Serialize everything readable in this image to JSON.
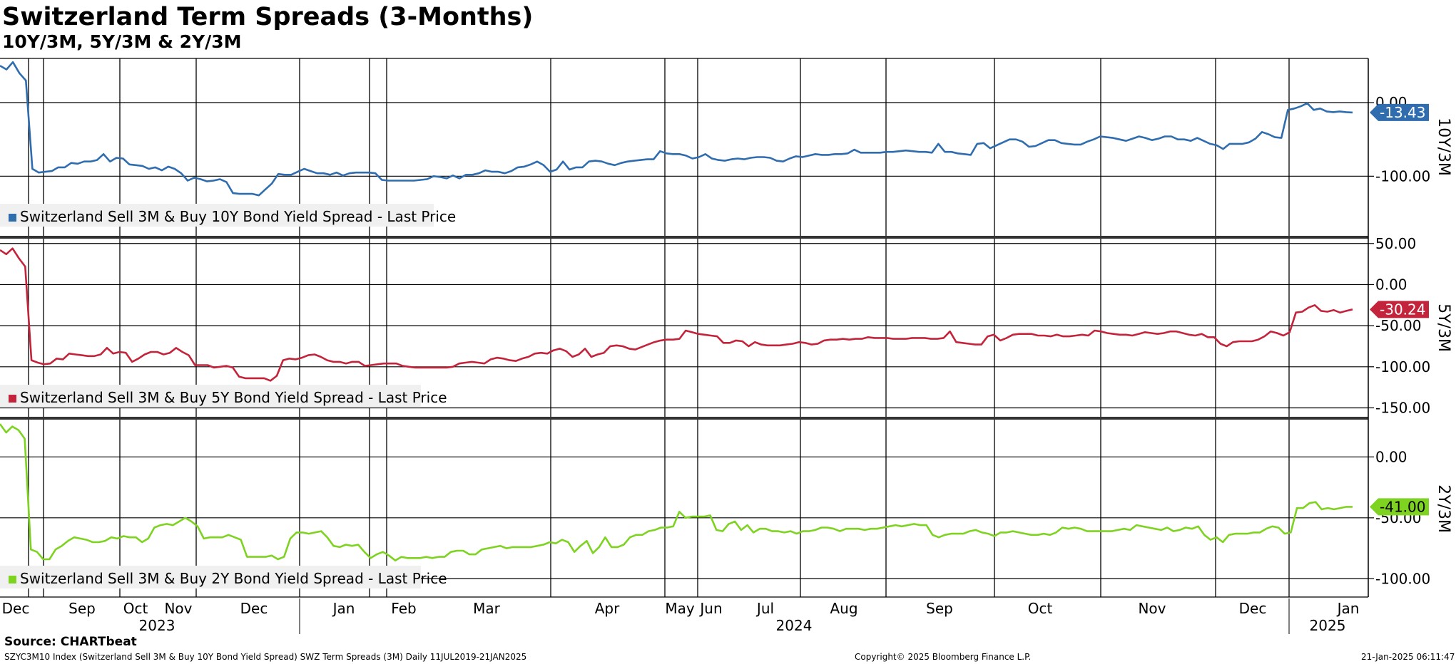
{
  "title": "Switzerland Term Spreads (3-Months)",
  "subtitle": "10Y/3M, 5Y/3M & 2Y/3M",
  "footer": {
    "source": "Source: CHARTbeat",
    "description": "SZYC3M10 Index (Switzerland Sell 3M & Buy 10Y Bond Yield Spread) SWZ Term Spreads (3M)  Daily 11JUL2019-21JAN2025",
    "copyright": "Copyright© 2025 Bloomberg Finance L.P.",
    "timestamp": "21-Jan-2025 06:11:47"
  },
  "chart_data": {
    "type": "line",
    "x_month_labels": [
      "Dec",
      "Sep",
      "Oct",
      "Nov",
      "Dec",
      "Jan",
      "Feb",
      "Mar",
      "Apr",
      "May",
      "Jun",
      "Jul",
      "Aug",
      "Sep",
      "Oct",
      "Nov",
      "Dec",
      "Jan"
    ],
    "x_year_labels": [
      "2023",
      "2024",
      "2025"
    ],
    "panels": [
      {
        "axis_label": "10Y/3M",
        "color": "#2f6dae",
        "last_value": "-13.43",
        "ylim": [
          -180,
          60
        ],
        "y_ticks": [
          {
            "value": 0,
            "label": "0.00"
          },
          {
            "value": -100,
            "label": "-100.00"
          }
        ],
        "legend": "Switzerland Sell 3M & Buy 10Y Bond Yield Spread - Last Price",
        "values": [
          50,
          45,
          55,
          40,
          30,
          -90,
          -95,
          -94,
          -93,
          -88,
          -88,
          -82,
          -83,
          -80,
          -80,
          -78,
          -70,
          -80,
          -75,
          -76,
          -84,
          -85,
          -86,
          -90,
          -88,
          -92,
          -87,
          -90,
          -96,
          -106,
          -102,
          -104,
          -107,
          -106,
          -104,
          -108,
          -123,
          -124,
          -124,
          -124,
          -126,
          -118,
          -110,
          -97,
          -98,
          -98,
          -94,
          -90,
          -93,
          -96,
          -96,
          -98,
          -95,
          -99,
          -96,
          -95,
          -95,
          -95,
          -96,
          -105,
          -106,
          -106,
          -106,
          -106,
          -106,
          -105,
          -104,
          -100,
          -101,
          -103,
          -99,
          -103,
          -98,
          -98,
          -96,
          -92,
          -94,
          -94,
          -96,
          -93,
          -88,
          -87,
          -84,
          -80,
          -85,
          -94,
          -91,
          -80,
          -91,
          -88,
          -88,
          -80,
          -79,
          -80,
          -83,
          -85,
          -82,
          -80,
          -79,
          -78,
          -77,
          -77,
          -66,
          -69,
          -70,
          -70,
          -72,
          -76,
          -74,
          -70,
          -76,
          -78,
          -79,
          -77,
          -76,
          -77,
          -75,
          -74,
          -74,
          -75,
          -79,
          -80,
          -76,
          -73,
          -74,
          -72,
          -70,
          -71,
          -71,
          -70,
          -70,
          -69,
          -64,
          -68,
          -68,
          -68,
          -68,
          -67,
          -67,
          -66,
          -65,
          -66,
          -67,
          -67,
          -68,
          -56,
          -67,
          -67,
          -69,
          -70,
          -71,
          -56,
          -55,
          -62,
          -58,
          -54,
          -50,
          -50,
          -53,
          -60,
          -59,
          -55,
          -51,
          -51,
          -55,
          -56,
          -57,
          -57,
          -53,
          -50,
          -46,
          -47,
          -48,
          -50,
          -52,
          -49,
          -46,
          -48,
          -51,
          -49,
          -46,
          -46,
          -50,
          -50,
          -52,
          -48,
          -52,
          -56,
          -58,
          -63,
          -56,
          -56,
          -56,
          -54,
          -49,
          -40,
          -43,
          -47,
          -48,
          -10,
          -8,
          -5,
          -1,
          -10,
          -8,
          -12,
          -13,
          -12,
          -13,
          -13.43
        ]
      },
      {
        "axis_label": "5Y/3M",
        "color": "#c3243b",
        "last_value": "-30.24",
        "ylim": [
          -160,
          55
        ],
        "y_ticks": [
          {
            "value": 50,
            "label": "50.00"
          },
          {
            "value": 0,
            "label": "0.00"
          },
          {
            "value": -50,
            "label": "-50.00"
          },
          {
            "value": -100,
            "label": "-100.00"
          },
          {
            "value": -150,
            "label": "-150.00"
          }
        ],
        "legend": "Switzerland Sell 3M & Buy 5Y Bond Yield Spread - Last Price",
        "values": [
          42,
          37,
          44,
          32,
          22,
          -92,
          -95,
          -97,
          -96,
          -90,
          -91,
          -84,
          -85,
          -86,
          -87,
          -87,
          -85,
          -77,
          -84,
          -82,
          -83,
          -94,
          -90,
          -85,
          -82,
          -82,
          -85,
          -83,
          -77,
          -82,
          -86,
          -98,
          -98,
          -98,
          -101,
          -100,
          -99,
          -101,
          -112,
          -114,
          -114,
          -114,
          -114,
          -117,
          -111,
          -92,
          -90,
          -91,
          -89,
          -86,
          -85,
          -88,
          -92,
          -94,
          -94,
          -96,
          -94,
          -94,
          -99,
          -98,
          -97,
          -96,
          -96,
          -96,
          -99,
          -100,
          -101,
          -101,
          -101,
          -101,
          -101,
          -101,
          -100,
          -96,
          -95,
          -94,
          -95,
          -96,
          -91,
          -89,
          -90,
          -92,
          -93,
          -90,
          -88,
          -84,
          -83,
          -84,
          -80,
          -78,
          -81,
          -88,
          -85,
          -78,
          -88,
          -85,
          -83,
          -75,
          -74,
          -75,
          -78,
          -79,
          -76,
          -73,
          -70,
          -68,
          -67,
          -67,
          -66,
          -56,
          -58,
          -60,
          -61,
          -62,
          -63,
          -71,
          -71,
          -68,
          -69,
          -75,
          -70,
          -73,
          -74,
          -74,
          -74,
          -73,
          -72,
          -70,
          -71,
          -73,
          -72,
          -68,
          -67,
          -67,
          -66,
          -67,
          -66,
          -66,
          -64,
          -65,
          -65,
          -65,
          -66,
          -66,
          -66,
          -65,
          -65,
          -65,
          -66,
          -66,
          -65,
          -57,
          -70,
          -71,
          -72,
          -73,
          -73,
          -63,
          -61,
          -68,
          -65,
          -61,
          -60,
          -60,
          -60,
          -62,
          -62,
          -63,
          -61,
          -63,
          -63,
          -62,
          -61,
          -62,
          -56,
          -57,
          -59,
          -60,
          -61,
          -61,
          -62,
          -60,
          -58,
          -59,
          -60,
          -59,
          -57,
          -57,
          -59,
          -61,
          -62,
          -60,
          -64,
          -64,
          -72,
          -75,
          -70,
          -69,
          -69,
          -69,
          -67,
          -63,
          -57,
          -59,
          -62,
          -58,
          -34,
          -33,
          -28,
          -25,
          -32,
          -33,
          -31,
          -34,
          -32,
          -30.24
        ]
      },
      {
        "axis_label": "2Y/3M",
        "color": "#7ed321",
        "last_value": "-41.00",
        "ylim": [
          -115,
          30
        ],
        "y_ticks": [
          {
            "value": 0,
            "label": "0.00"
          },
          {
            "value": -50,
            "label": "-50.00"
          },
          {
            "value": -100,
            "label": "-100.00"
          }
        ],
        "legend": "Switzerland Sell 3M & Buy 2Y Bond Yield Spread - Last Price",
        "values": [
          27,
          20,
          25,
          22,
          15,
          -76,
          -78,
          -84,
          -84,
          -76,
          -73,
          -69,
          -66,
          -67,
          -68,
          -70,
          -70,
          -69,
          -66,
          -67,
          -65,
          -66,
          -66,
          -70,
          -67,
          -58,
          -56,
          -55,
          -56,
          -53,
          -50,
          -53,
          -57,
          -67,
          -66,
          -66,
          -66,
          -64,
          -66,
          -68,
          -82,
          -82,
          -82,
          -82,
          -81,
          -84,
          -82,
          -67,
          -62,
          -62,
          -63,
          -62,
          -61,
          -66,
          -73,
          -74,
          -72,
          -73,
          -72,
          -78,
          -83,
          -80,
          -78,
          -81,
          -85,
          -82,
          -83,
          -83,
          -83,
          -82,
          -83,
          -82,
          -82,
          -78,
          -77,
          -77,
          -80,
          -80,
          -76,
          -75,
          -74,
          -73,
          -75,
          -74,
          -74,
          -74,
          -74,
          -73,
          -72,
          -70,
          -71,
          -68,
          -70,
          -78,
          -73,
          -69,
          -79,
          -74,
          -66,
          -74,
          -74,
          -72,
          -66,
          -64,
          -64,
          -61,
          -60,
          -58,
          -58,
          -57,
          -45,
          -50,
          -49,
          -49,
          -49,
          -48,
          -60,
          -61,
          -55,
          -53,
          -60,
          -56,
          -62,
          -59,
          -59,
          -61,
          -61,
          -62,
          -61,
          -63,
          -61,
          -61,
          -60,
          -58,
          -58,
          -59,
          -61,
          -59,
          -59,
          -59,
          -60,
          -59,
          -59,
          -58,
          -57,
          -56,
          -57,
          -56,
          -55,
          -56,
          -56,
          -64,
          -66,
          -64,
          -63,
          -63,
          -63,
          -61,
          -60,
          -62,
          -63,
          -65,
          -62,
          -62,
          -61,
          -62,
          -63,
          -64,
          -64,
          -63,
          -64,
          -62,
          -58,
          -59,
          -58,
          -59,
          -61,
          -61,
          -61,
          -61,
          -61,
          -60,
          -59,
          -60,
          -56,
          -57,
          -58,
          -59,
          -60,
          -58,
          -61,
          -60,
          -58,
          -59,
          -57,
          -64,
          -68,
          -66,
          -70,
          -64,
          -63,
          -63,
          -63,
          -62,
          -62,
          -59,
          -57,
          -58,
          -63,
          -62,
          -42,
          -42,
          -38,
          -37,
          -43,
          -42,
          -43,
          -42,
          -41,
          -41.0
        ]
      }
    ]
  }
}
